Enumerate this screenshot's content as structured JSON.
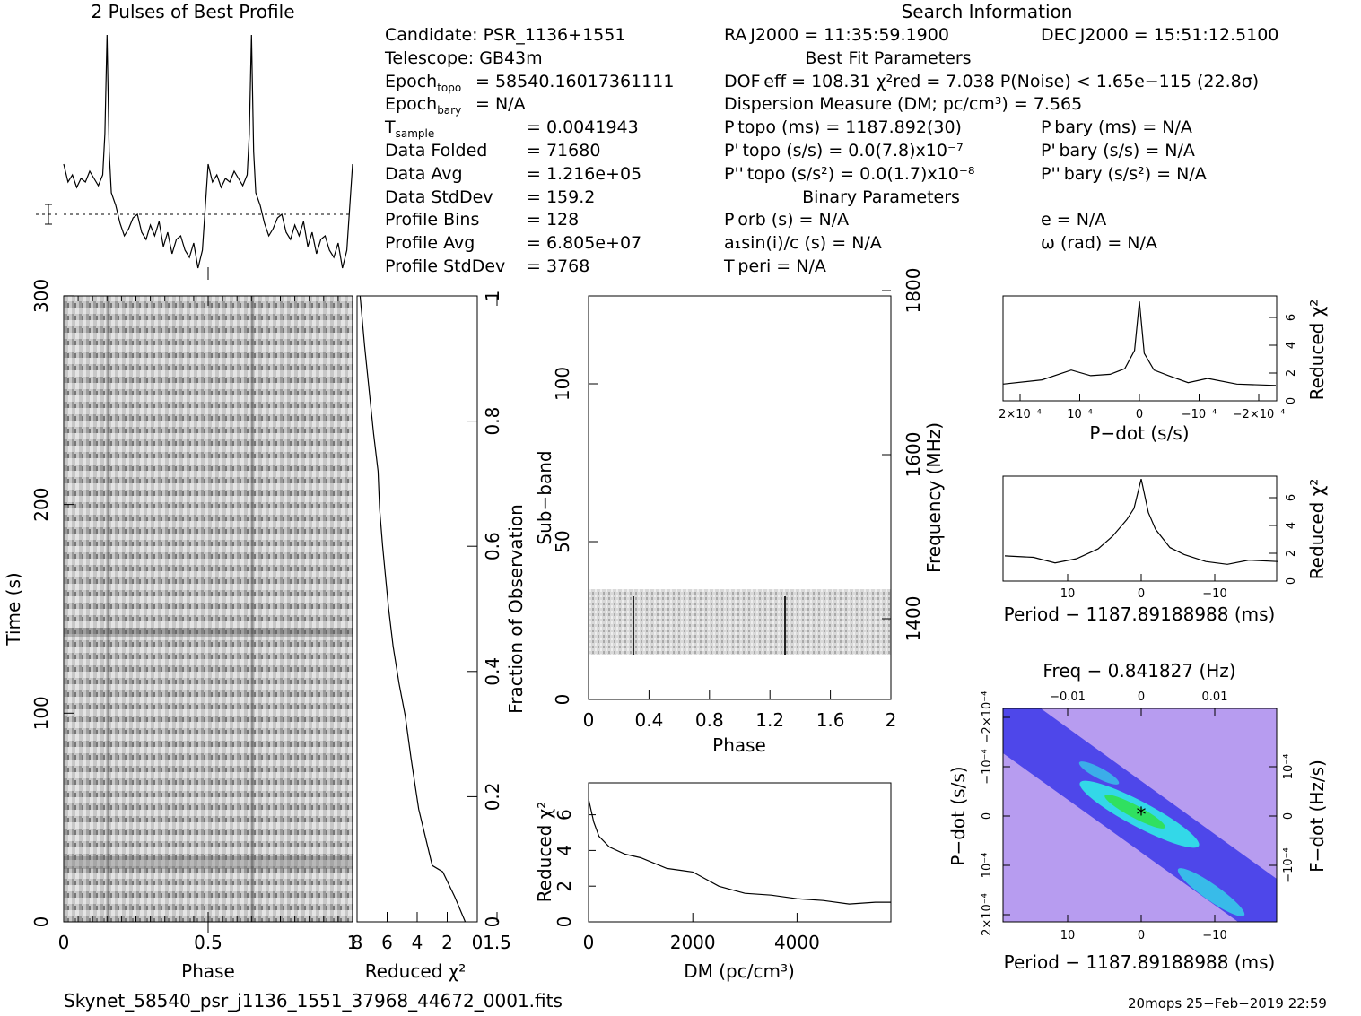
{
  "texts": {
    "best_profile_title": "2 Pulses of Best Profile",
    "search_info_title": "Search Information",
    "best_fit_title": "Best Fit Parameters",
    "binary_title": "Binary Parameters",
    "footer_file": "Skynet_58540_psr_j1136_1551_37968_44672_0001.fits",
    "footer_stamp": "20mops 25−Feb−2019 22:59"
  },
  "info_left": [
    {
      "label": "Candidate:  PSR_1136+1551",
      "value": ""
    },
    {
      "label": "Telescope:  GB43m",
      "value": ""
    },
    {
      "label": "Epoch",
      "sub": "topo",
      "value": "= 58540.16017361111"
    },
    {
      "label": "Epoch",
      "sub": "bary",
      "value": "= N/A"
    },
    {
      "label": "T",
      "sub": "sample",
      "value": "=  0.0041943"
    },
    {
      "label": "Data Folded",
      "value": "=  71680"
    },
    {
      "label": "Data Avg",
      "value": "=  1.216e+05"
    },
    {
      "label": "Data StdDev",
      "value": "=  159.2"
    },
    {
      "label": "Profile Bins",
      "value": "=  128"
    },
    {
      "label": "Profile Avg",
      "value": "=  6.805e+07"
    },
    {
      "label": "Profile StdDev",
      "value": "=  3768"
    }
  ],
  "info_mid": {
    "ra": "RA J2000 = 11:35:59.1900",
    "dof": "DOF eff = 108.31  χ²red = 7.038  P(Noise) < 1.65e−115  (22.8σ)",
    "dm": "Dispersion Measure (DM; pc/cm³) = 7.565",
    "ptopo": "P topo (ms) =  1187.892(30)",
    "pdtopo": "P' topo (s/s) = 0.0(7.8)x10⁻⁷",
    "pddtopo": "P'' topo (s/s²) = 0.0(1.7)x10⁻⁸",
    "porb": "P orb (s) = N/A",
    "a1": "a₁sin(i)/c (s) = N/A",
    "tperi": "T peri = N/A"
  },
  "info_right": {
    "dec": "DEC J2000 = 15:51:12.5100",
    "pbary": "P bary (ms) = N/A",
    "pdbary": "P' bary (s/s) = N/A",
    "pddbary": "P'' bary (s/s²) = N/A",
    "ecc": "e = N/A",
    "omega": "ω (rad) = N/A"
  },
  "axes": {
    "time_ylabel": "Time (s)",
    "phase_xlabel": "Phase",
    "redchi_xlabel": "Reduced χ²",
    "fraction_label": "Fraction of Observation",
    "subband_label": "Sub−band",
    "freq_label": "Frequency (MHz)",
    "subband_phase_label": "Phase",
    "dm_xlabel": "DM (pc/cm³)",
    "dm_ylabel": "Reduced χ²",
    "pdot_xlabel": "P−dot (s/s)",
    "pdot_ylabel": "Reduced χ²",
    "period_xlabel": "Period − 1187.89188988 (ms)",
    "period_ylabel": "Reduced χ²",
    "freq_top_label": "Freq − 0.841827 (Hz)",
    "pp_ylabel": "P−dot (s/s)",
    "fdot_label": "F−dot (Hz/s)",
    "pp_xlabel": "Period − 1187.89188988 (ms)"
  },
  "ticks": {
    "time_y": [
      "0",
      "100",
      "200",
      "300"
    ],
    "phase_x": [
      "0",
      "0.5",
      "1",
      "1.5"
    ],
    "redchi_x": [
      "8",
      "6",
      "4",
      "2",
      "0"
    ],
    "fraction_y": [
      "0",
      "0.2",
      "0.4",
      "0.6",
      "0.8",
      "1"
    ],
    "subband_y": [
      "0",
      "50",
      "100"
    ],
    "freq_y": [
      "1400",
      "1600",
      "1800"
    ],
    "sub_phase_x": [
      "0",
      "0.4",
      "0.8",
      "1.2",
      "1.6",
      "2"
    ],
    "dm_x": [
      "0",
      "2000",
      "4000"
    ],
    "dm_y": [
      "0",
      "2",
      "4",
      "6"
    ],
    "pdot_x": [
      "2×10⁻⁴",
      "10⁻⁴",
      "0",
      "−10⁻⁴",
      "−2×10⁻⁴"
    ],
    "chi_y": [
      "0",
      "2",
      "4",
      "6"
    ],
    "period_x": [
      "10",
      "0",
      "−10"
    ],
    "freq_top_x": [
      "−0.01",
      "0",
      "0.01"
    ],
    "pp_y": [
      "2×10⁻⁴",
      "10⁻⁴",
      "0",
      "−10⁻⁴",
      "−2×10⁻⁴"
    ],
    "fdot_y": [
      "−10⁻⁴",
      "0",
      "10⁻⁴"
    ]
  },
  "chart_data": [
    {
      "type": "line",
      "title": "2 Pulses of Best Profile",
      "x": [
        0,
        0.03,
        0.06,
        0.09,
        0.12,
        0.15,
        0.18,
        0.21,
        0.24,
        0.27,
        0.285,
        0.3,
        0.315,
        0.33,
        0.36,
        0.39,
        0.42,
        0.45,
        0.48,
        0.51,
        0.54,
        0.57,
        0.6,
        0.63,
        0.66,
        0.69,
        0.72,
        0.75,
        0.78,
        0.81,
        0.84,
        0.87,
        0.9,
        0.93,
        0.96,
        1.0
      ],
      "y": [
        0.28,
        0.18,
        0.22,
        0.15,
        0.2,
        0.18,
        0.24,
        0.2,
        0.16,
        0.22,
        0.45,
        1.0,
        0.35,
        0.12,
        0.05,
        -0.05,
        -0.12,
        -0.08,
        -0.02,
        0.0,
        -0.1,
        -0.14,
        -0.06,
        -0.12,
        -0.04,
        -0.18,
        -0.1,
        -0.22,
        -0.14,
        -0.12,
        -0.2,
        -0.24,
        -0.16,
        -0.3,
        -0.2,
        0.28
      ],
      "repeat": 2
    },
    {
      "type": "line",
      "xlabel": "Reduced χ²",
      "ylabel": "Fraction of Observation",
      "x": [
        0.8,
        1.5,
        2.3,
        3.0,
        3.4,
        3.9,
        4.4,
        4.8,
        5.2,
        5.6,
        5.9,
        6.1,
        6.3,
        6.5,
        6.6,
        6.9,
        7.2,
        7.5,
        7.8
      ],
      "y": [
        0.0,
        0.04,
        0.08,
        0.09,
        0.13,
        0.18,
        0.26,
        0.33,
        0.38,
        0.44,
        0.5,
        0.55,
        0.6,
        0.66,
        0.72,
        0.78,
        0.85,
        0.92,
        1.0
      ],
      "xlim": [
        8,
        0
      ],
      "ylim": [
        0,
        1
      ]
    },
    {
      "type": "line",
      "xlabel": "DM (pc/cm³)",
      "ylabel": "Reduced χ²",
      "x": [
        0,
        100,
        200,
        400,
        700,
        1000,
        1500,
        2000,
        2500,
        3000,
        3500,
        4000,
        4500,
        5000,
        5500,
        5800
      ],
      "y": [
        6.9,
        5.6,
        4.8,
        4.2,
        3.8,
        3.6,
        3.0,
        2.8,
        2.0,
        1.6,
        1.5,
        1.3,
        1.2,
        1.0,
        1.1,
        1.1
      ],
      "xlim": [
        0,
        5800
      ],
      "ylim": [
        0,
        7
      ]
    },
    {
      "type": "line",
      "xlabel": "P−dot (s/s)",
      "ylabel": "Reduced χ²",
      "x": [
        0.00028,
        0.0002,
        0.00014,
        0.0001,
        6e-05,
        3e-05,
        1e-05,
        0,
        -1e-05,
        -3e-05,
        -6e-05,
        -0.0001,
        -0.00014,
        -0.0002,
        -0.00028
      ],
      "y": [
        1.2,
        1.5,
        2.2,
        1.8,
        1.9,
        2.3,
        3.6,
        7.1,
        3.4,
        2.2,
        1.8,
        1.3,
        1.6,
        1.2,
        1.1
      ],
      "xlim": [
        0.00028,
        -0.00028
      ],
      "ylim": [
        0,
        7.5
      ]
    },
    {
      "type": "line",
      "xlabel": "Period − 1187.89188988 (ms)",
      "ylabel": "Reduced χ²",
      "x": [
        19,
        15,
        12,
        9,
        6,
        4,
        2,
        1,
        0,
        -1,
        -2,
        -4,
        -6,
        -9,
        -12,
        -15,
        -19
      ],
      "y": [
        1.8,
        1.7,
        1.3,
        1.6,
        2.3,
        3.2,
        4.4,
        5.2,
        7.3,
        4.9,
        3.7,
        2.4,
        1.9,
        1.4,
        1.2,
        1.5,
        1.4
      ],
      "xlim": [
        19,
        -19
      ],
      "ylim": [
        0,
        7.5
      ]
    }
  ],
  "colors": {
    "pp_bg": "#b79cf0",
    "pp_blue": "#2b2be8",
    "pp_cyan": "#33d8e8",
    "pp_green": "#30e060"
  }
}
